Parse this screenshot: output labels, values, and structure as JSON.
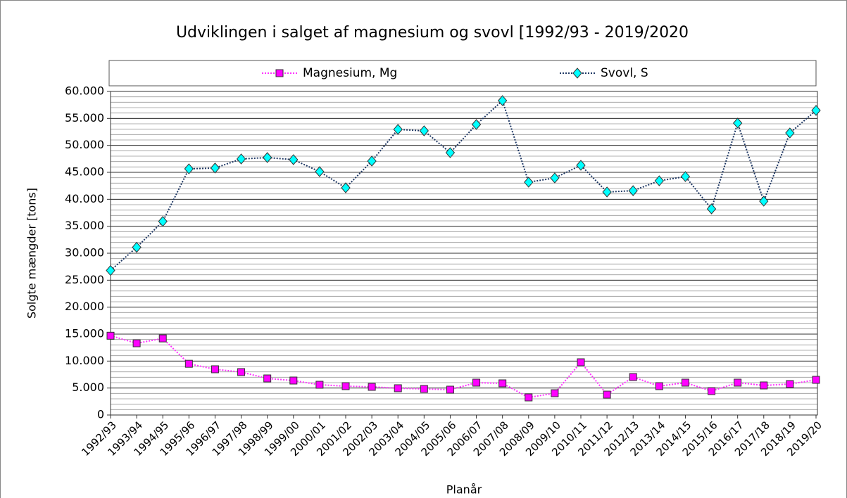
{
  "chart_data": {
    "type": "line",
    "title": "Udviklingen i salget af magnesium og svovl [1992/93 - 2019/2020",
    "y_label": "Solgte mængder [tons]",
    "x_label": "Planår",
    "categories": [
      "1992/93",
      "1993/94",
      "1994/95",
      "1995/96",
      "1996/97",
      "1997/98",
      "1998/99",
      "1999/00",
      "2000/01",
      "2001/02",
      "2002/03",
      "2003/04",
      "2004/05",
      "2005/06",
      "2006/07",
      "2007/08",
      "2008/09",
      "2009/10",
      "2010/11",
      "2011/12",
      "2012/13",
      "2013/14",
      "2014/15",
      "2015/16",
      "2016/17",
      "2017/18",
      "2018/19",
      "2019/20"
    ],
    "series": [
      {
        "name": "Magnesium, Mg",
        "color": "#ff00ff",
        "line_color": "#ff33ff",
        "marker": "square",
        "values": [
          14700,
          13300,
          14200,
          9500,
          8480,
          7960,
          6780,
          6390,
          5610,
          5350,
          5220,
          4960,
          4830,
          4700,
          6000,
          5870,
          3260,
          4040,
          9780,
          3780,
          7040,
          5350,
          6000,
          4430,
          6000,
          5480,
          5740,
          6520
        ]
      },
      {
        "name": "Svovl, S",
        "color": "#00ffff",
        "line_color": "#1f3864",
        "marker": "diamond",
        "values": [
          26800,
          31100,
          35900,
          45650,
          45800,
          47480,
          47740,
          47350,
          45130,
          42130,
          47090,
          52960,
          52700,
          48650,
          53870,
          58300,
          43170,
          43960,
          46300,
          41350,
          41600,
          43430,
          44220,
          38220,
          54130,
          39650,
          52300,
          56480
        ]
      }
    ],
    "ylim": [
      0,
      60000
    ],
    "yticks": [
      0,
      {
        "value": 5000,
        "label": "5.000"
      },
      {
        "value": 10000,
        "label": "10.000"
      },
      {
        "value": 15000,
        "label": "15.000"
      },
      {
        "value": 20000,
        "label": "20.000"
      },
      {
        "value": 25000,
        "label": "25.000"
      },
      {
        "value": 30000,
        "label": "30.000"
      },
      {
        "value": 35000,
        "label": "35.000"
      },
      {
        "value": 40000,
        "label": "40.000"
      },
      {
        "value": 45000,
        "label": "45.000"
      },
      {
        "value": 50000,
        "label": "50.000"
      },
      {
        "value": 55000,
        "label": "55.000"
      },
      {
        "value": 60000,
        "label": "60.000"
      }
    ],
    "grid": true,
    "minor_grid_step": 1000,
    "legend": "top"
  }
}
